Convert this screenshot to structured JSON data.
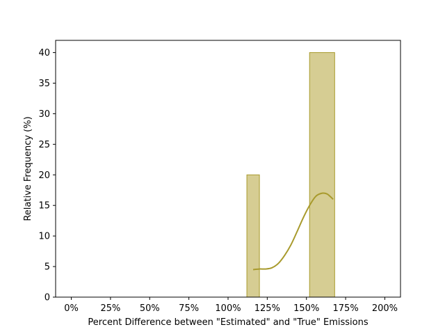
{
  "chart_data": {
    "type": "bar",
    "xlabel": "Percent Difference between \"Estimated\" and \"True\" Emissions",
    "ylabel": "Relative Frequency (%)",
    "xlim": [
      -0.1,
      2.1
    ],
    "ylim": [
      0,
      42
    ],
    "x_ticks": [
      0,
      0.25,
      0.5,
      0.75,
      1.0,
      1.25,
      1.5,
      1.75,
      2.0
    ],
    "x_tick_labels": [
      "0%",
      "25%",
      "50%",
      "75%",
      "100%",
      "125%",
      "150%",
      "175%",
      "200%"
    ],
    "y_ticks": [
      0,
      5,
      10,
      15,
      20,
      25,
      30,
      35,
      40
    ],
    "y_tick_labels": [
      "0",
      "5",
      "10",
      "15",
      "20",
      "25",
      "30",
      "35",
      "40"
    ],
    "bars": [
      {
        "x_start": 1.12,
        "x_end": 1.2,
        "value": 20
      },
      {
        "x_start": 1.52,
        "x_end": 1.68,
        "value": 40
      }
    ],
    "kde_curve": {
      "x": [
        1.16,
        1.2,
        1.24,
        1.28,
        1.32,
        1.36,
        1.4,
        1.44,
        1.48,
        1.52,
        1.56,
        1.6,
        1.63,
        1.65,
        1.67
      ],
      "y": [
        4.5,
        4.6,
        4.6,
        4.8,
        5.5,
        6.8,
        8.5,
        10.7,
        13.0,
        15.0,
        16.5,
        17.0,
        16.9,
        16.5,
        16.0
      ]
    },
    "grid": false,
    "colors": {
      "bar_fill": "#d6cd93",
      "bar_edge": "#a89a2c",
      "kde_line": "#a89a2c"
    }
  }
}
